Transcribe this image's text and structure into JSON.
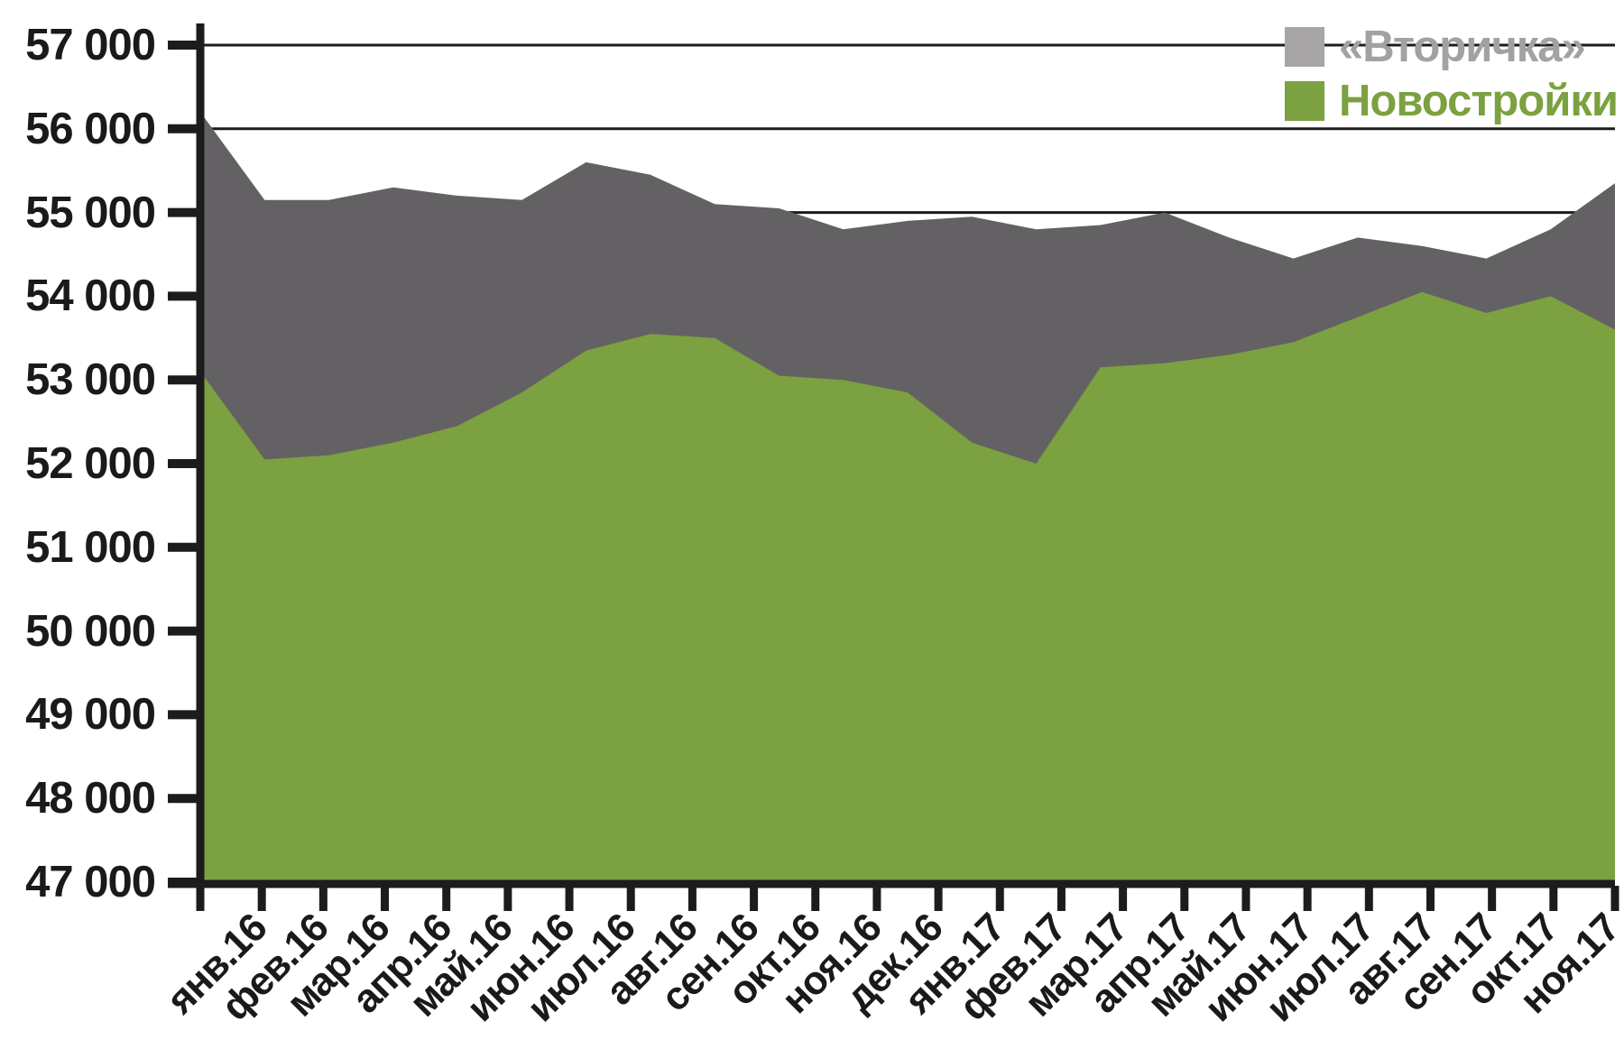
{
  "legend": {
    "items": [
      {
        "label": "«Вторичка»",
        "text_color": "#a4a1a3",
        "swatch_color": "#a8a5a7"
      },
      {
        "label": "Новостройки",
        "text_color": "#7ba140",
        "swatch_color": "#7ba140"
      }
    ]
  },
  "chart_data": {
    "type": "area",
    "categories": [
      "янв.16",
      "фев.16",
      "мар.16",
      "апр.16",
      "май.16",
      "июн.16",
      "июл.16",
      "авг.16",
      "сен.16",
      "окт.16",
      "ноя.16",
      "дек.16",
      "янв.17",
      "фев.17",
      "мар.17",
      "апр.17",
      "май.17",
      "июн.17",
      "июл.17",
      "авг.17",
      "сен.17",
      "окт.17",
      "ноя.17"
    ],
    "series": [
      {
        "name": "«Вторичка»",
        "color": "#646164",
        "values": [
          56200,
          55150,
          55150,
          55300,
          55200,
          55150,
          55600,
          55450,
          55100,
          55050,
          54800,
          54900,
          54950,
          54800,
          54850,
          55000,
          54700,
          54450,
          54700,
          54600,
          54450,
          54800,
          55350
        ]
      },
      {
        "name": "Новостройки",
        "color": "#7ba140",
        "values": [
          53100,
          52050,
          52100,
          52250,
          52450,
          52850,
          53350,
          53550,
          53500,
          53050,
          53000,
          52850,
          52250,
          52000,
          53150,
          53200,
          53300,
          53450,
          53750,
          54050,
          53800,
          54000,
          53600
        ]
      }
    ],
    "ylim": [
      47000,
      57000
    ],
    "ytick_step": 1000,
    "ytick_labels": [
      "57 000",
      "56 000",
      "55 000",
      "54 000",
      "53 000",
      "52 000",
      "51 000",
      "50 000",
      "49 000",
      "48 000",
      "47 000"
    ],
    "grid": true,
    "legend_position": "top-right",
    "xtick_rotation_deg": -45,
    "axis_color": "#1c1c1c"
  }
}
